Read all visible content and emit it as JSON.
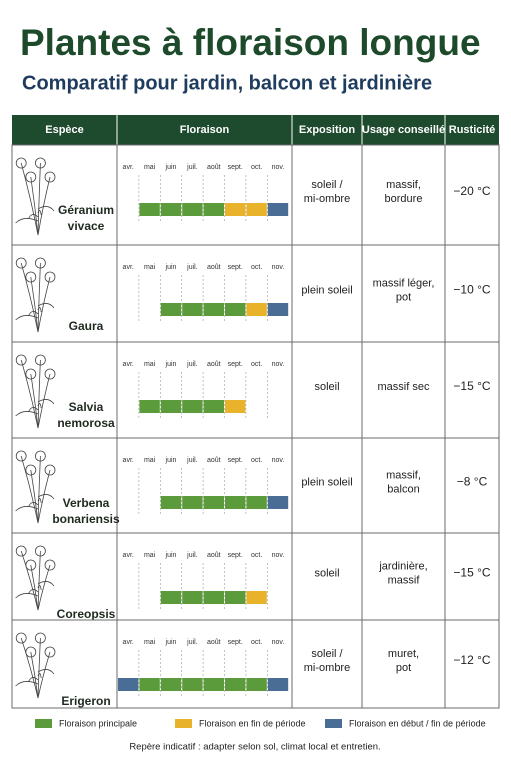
{
  "header": {
    "title": "Plantes à floraison longue",
    "subtitle": "Comparatif pour jardin, balcon et jardinière"
  },
  "table": {
    "columns": [
      "Espèce",
      "Floraison",
      "Exposition",
      "Usage conseillé",
      "Rusticité"
    ],
    "months": [
      "avr.",
      "mai",
      "juin",
      "juil.",
      "août",
      "sept.",
      "oct.",
      "nov."
    ],
    "rows": [
      {
        "species": [
          "Géranium",
          "vivace"
        ],
        "bloom": [
          null,
          "Floraison principale",
          "Floraison principale",
          "Floraison principale",
          "Floraison principale",
          "Floraison en fin de période",
          "Floraison en fin de période",
          "Floraison en début / fin de période"
        ],
        "exposure": [
          "soleil /",
          "mi-ombre"
        ],
        "usage": [
          "massif,",
          "bordure"
        ],
        "hardiness": "−20 °C"
      },
      {
        "species": [
          "Gaura"
        ],
        "bloom": [
          null,
          null,
          "Floraison principale",
          "Floraison principale",
          "Floraison principale",
          "Floraison principale",
          "Floraison en fin de période",
          "Floraison en début / fin de période"
        ],
        "exposure": [
          "plein soleil"
        ],
        "usage": [
          "massif léger,",
          "pot"
        ],
        "hardiness": "−10 °C"
      },
      {
        "species": [
          "Salvia",
          "nemorosa"
        ],
        "bloom": [
          null,
          "Floraison principale",
          "Floraison principale",
          "Floraison principale",
          "Floraison principale",
          "Floraison en fin de période",
          null,
          null
        ],
        "exposure": [
          "soleil"
        ],
        "usage": [
          "massif sec"
        ],
        "hardiness": "−15 °C"
      },
      {
        "species": [
          "Verbena",
          "bonariensis"
        ],
        "bloom": [
          null,
          null,
          "Floraison principale",
          "Floraison principale",
          "Floraison principale",
          "Floraison principale",
          "Floraison principale",
          "Floraison en début / fin de période"
        ],
        "exposure": [
          "plein soleil"
        ],
        "usage": [
          "massif,",
          "balcon"
        ],
        "hardiness": "−8 °C"
      },
      {
        "species": [
          "Coreopsis"
        ],
        "bloom": [
          null,
          null,
          "Floraison principale",
          "Floraison principale",
          "Floraison principale",
          "Floraison principale",
          "Floraison en fin de période",
          null
        ],
        "exposure": [
          "soleil"
        ],
        "usage": [
          "jardinière,",
          "massif"
        ],
        "hardiness": "−15 °C"
      },
      {
        "species": [
          "Erigeron"
        ],
        "bloom": [
          "Floraison en début / fin de période",
          "Floraison principale",
          "Floraison principale",
          "Floraison principale",
          "Floraison principale",
          "Floraison principale",
          "Floraison principale",
          "Floraison en début / fin de période"
        ],
        "exposure": [
          "soleil /",
          "mi-ombre"
        ],
        "usage": [
          "muret,",
          "pot"
        ],
        "hardiness": "−12 °C"
      }
    ]
  },
  "legend": [
    {
      "label": "Floraison principale",
      "color": "#5b9b3c"
    },
    {
      "label": "Floraison en fin de période",
      "color": "#e8b22b"
    },
    {
      "label": "Floraison en début / fin de période",
      "color": "#4a6d96"
    }
  ],
  "footnote": "Repère indicatif : adapter selon sol, climat local et entretien."
}
